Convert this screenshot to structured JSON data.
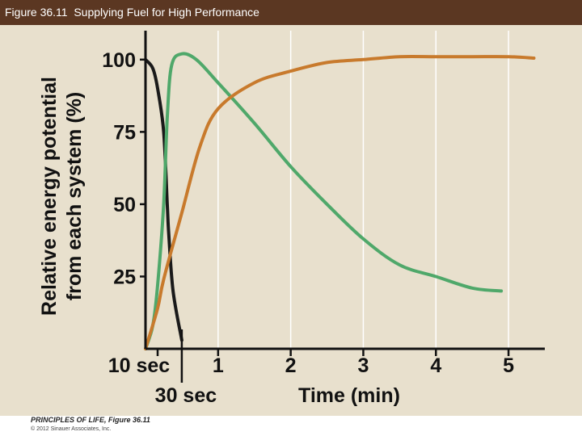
{
  "header": {
    "title": "Figure 36.11  Supplying Fuel for High Performance"
  },
  "footer": {
    "book": "PRINCIPLES OF LIFE, Figure 36.11",
    "copyright": "© 2012 Sinauer Associates, Inc."
  },
  "colors": {
    "background": "#e8e0cd",
    "title_bar": "#5b3722",
    "series_black": "#1a1a1a",
    "series_green": "#4fa86a",
    "series_orange": "#c87a2c"
  },
  "chart_data": {
    "type": "line",
    "title": "",
    "ylabel_line1": "Relative energy potential",
    "ylabel_line2": "from each system (%)",
    "xlabel": "Time (min)",
    "yticks": [
      "100",
      "75",
      "50",
      "25"
    ],
    "ytick_values": [
      100,
      75,
      50,
      25
    ],
    "xticks": [
      "1",
      "2",
      "3",
      "4",
      "5"
    ],
    "xtick_values": [
      1,
      2,
      3,
      4,
      5
    ],
    "special_ticks": [
      {
        "label": "10 sec",
        "x": 0.167
      },
      {
        "label": "30 sec",
        "x": 0.5
      }
    ],
    "xlim": [
      0,
      5.5
    ],
    "ylim": [
      0,
      110
    ],
    "grid": "vertical",
    "series": [
      {
        "color": "black",
        "points": [
          [
            0,
            100
          ],
          [
            0.1,
            97
          ],
          [
            0.167,
            90
          ],
          [
            0.25,
            75
          ],
          [
            0.3,
            50
          ],
          [
            0.32,
            40
          ],
          [
            0.38,
            20
          ],
          [
            0.5,
            3
          ]
        ]
      },
      {
        "color": "green",
        "points": [
          [
            0,
            0
          ],
          [
            0.1,
            8
          ],
          [
            0.167,
            22
          ],
          [
            0.25,
            50
          ],
          [
            0.3,
            80
          ],
          [
            0.36,
            98
          ],
          [
            0.5,
            102
          ],
          [
            0.7,
            100
          ],
          [
            1,
            92
          ],
          [
            1.5,
            78
          ],
          [
            2,
            63
          ],
          [
            2.5,
            50
          ],
          [
            3,
            38
          ],
          [
            3.5,
            29
          ],
          [
            4,
            25
          ],
          [
            4.5,
            21
          ],
          [
            4.9,
            20
          ]
        ]
      },
      {
        "color": "orange",
        "points": [
          [
            0,
            0
          ],
          [
            0.167,
            14
          ],
          [
            0.25,
            24
          ],
          [
            0.5,
            47
          ],
          [
            0.75,
            70
          ],
          [
            1,
            83
          ],
          [
            1.5,
            92
          ],
          [
            2,
            96
          ],
          [
            2.5,
            99
          ],
          [
            3,
            100
          ],
          [
            3.5,
            101
          ],
          [
            4,
            101
          ],
          [
            4.5,
            101
          ],
          [
            5,
            101
          ],
          [
            5.35,
            100.5
          ]
        ]
      }
    ]
  }
}
